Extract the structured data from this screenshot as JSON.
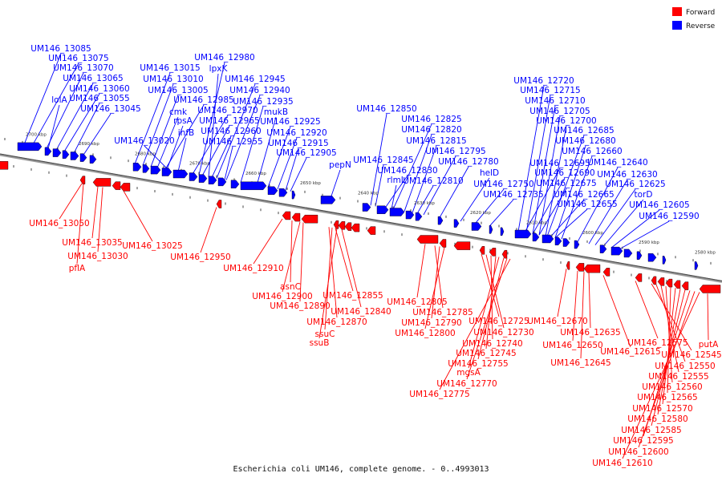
{
  "caption": "Escherichia coli UM146, complete genome. - 0..4993013",
  "legend": [
    {
      "label": "Forward",
      "color": "#ff0000"
    },
    {
      "label": "Reverse",
      "color": "#0000ff"
    }
  ],
  "colors": {
    "forward": "#ff0000",
    "reverse": "#0000ff",
    "axis": "#888888"
  },
  "ticks": [
    "2700 kbp",
    "2690 kbp",
    "2680 kbp",
    "2670 kbp",
    "2660 kbp",
    "2650 kbp",
    "2640 kbp",
    "2630 kbp",
    "2620 kbp",
    "2610 kbp",
    "2600 kbp",
    "2590 kbp",
    "2580 kbp"
  ],
  "reverse_labels": [
    "UM146_13085",
    "UM146_13075",
    "UM146_13070",
    "UM146_13065",
    "UM146_13060",
    "lolA",
    "UM146_13055",
    "UM146_13045",
    "UM146_13015",
    "UM146_13010",
    "UM146_13005",
    "UM146_13020",
    "cmk",
    "rpsA",
    "ihfB",
    "UM146_12985",
    "UM146_12980",
    "lpxK",
    "UM146_12945",
    "UM146_12940",
    "UM146_12935",
    "mukB",
    "UM146_12970",
    "UM146_12965",
    "UM146_12960",
    "UM146_12955",
    "UM146_12925",
    "UM146_12920",
    "UM146_12915",
    "UM146_12905",
    "pepN",
    "UM146_12850",
    "UM146_12825",
    "UM146_12820",
    "UM146_12815",
    "UM146_12845",
    "UM146_12830",
    "rlmL",
    "UM146_12810",
    "UM146_12795",
    "UM146_12780",
    "helD",
    "UM146_12750",
    "UM146_12735",
    "UM146_12720",
    "UM146_12715",
    "UM146_12710",
    "UM146_12705",
    "UM146_12700",
    "UM146_12685",
    "UM146_12680",
    "UM146_12660",
    "UM146_12695",
    "UM146_12690",
    "UM146_12675",
    "UM146_12665",
    "UM146_12655",
    "UM146_12640",
    "UM146_12630",
    "UM146_12625",
    "torD",
    "UM146_12605",
    "UM146_12590"
  ],
  "forward_labels": [
    "UM146_13050",
    "UM146_13035",
    "UM146_13030",
    "pflA",
    "UM146_13025",
    "UM146_12950",
    "UM146_12910",
    "asnC",
    "UM146_12900",
    "UM146_12890",
    "UM146_12855",
    "UM146_12840",
    "UM146_12870",
    "ssuC",
    "ssuB",
    "UM146_12805",
    "UM146_12785",
    "UM146_12790",
    "UM146_12800",
    "UM146_12725",
    "UM146_12730",
    "UM146_12740",
    "UM146_12745",
    "UM146_12755",
    "mgsA",
    "UM146_12770",
    "UM146_12775",
    "UM146_12670",
    "UM146_12650",
    "UM146_12645",
    "UM146_12635",
    "UM146_12615",
    "UM146_12575",
    "UM146_12545",
    "putA",
    "UM146_12550",
    "UM146_12555",
    "UM146_12560",
    "UM146_12565",
    "UM146_12570",
    "UM146_12580",
    "UM146_12585",
    "UM146_12595",
    "UM146_12600",
    "UM146_12610"
  ]
}
